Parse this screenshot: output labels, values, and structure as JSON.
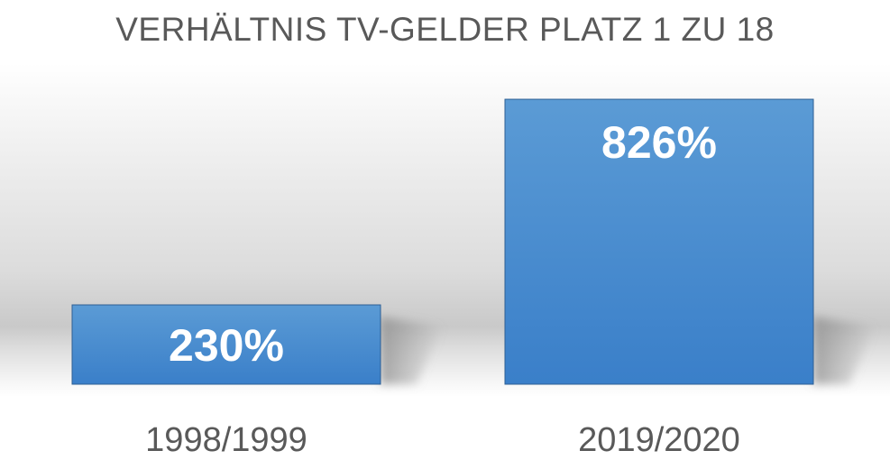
{
  "chart_data": {
    "type": "bar",
    "title": "VERHÄLTNIS TV-GELDER PLATZ 1 ZU 18",
    "categories": [
      "1998/1999",
      "2019/2020"
    ],
    "values": [
      230,
      826
    ],
    "value_labels": [
      "230%",
      "826%"
    ],
    "xlabel": "",
    "ylabel": "",
    "ylim": [
      0,
      1000
    ],
    "grid": false,
    "legend": "none",
    "colors": {
      "bar_top": "#5b9bd5",
      "bar_bottom": "#3a7fc9",
      "bar_border": "#2e5f94",
      "label": "#ffffff",
      "text": "#595959"
    }
  }
}
